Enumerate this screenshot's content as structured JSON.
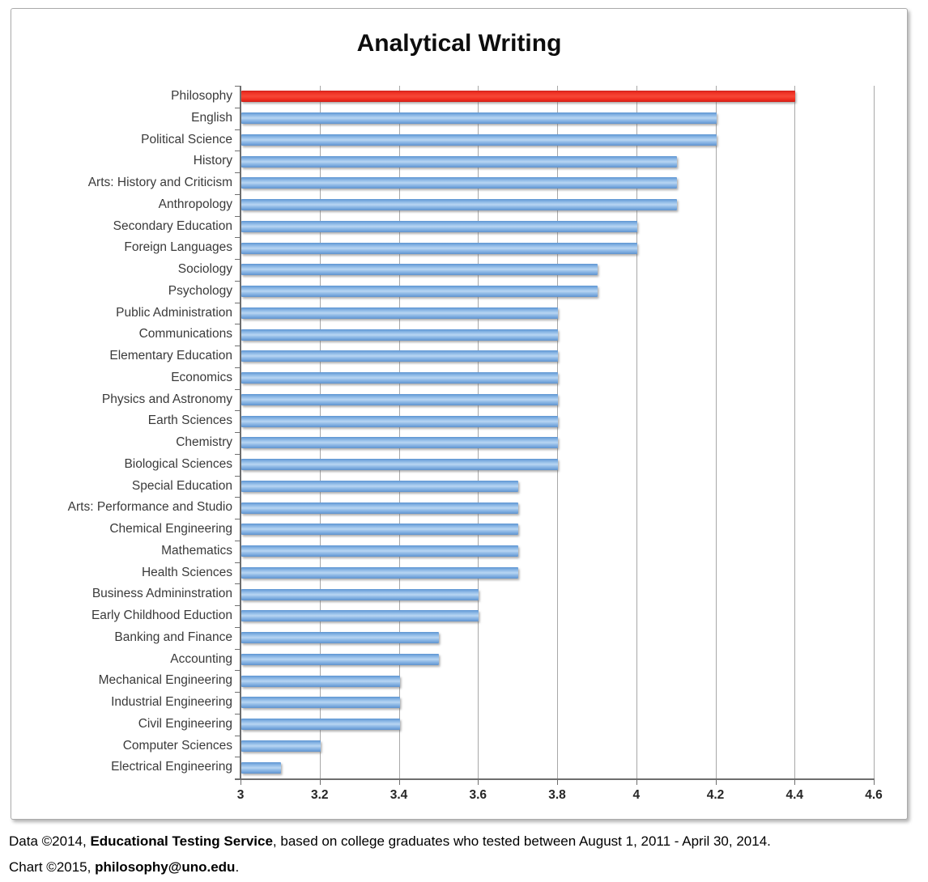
{
  "title": "Analytical Writing",
  "chart_data": {
    "type": "bar",
    "orientation": "horizontal",
    "title": "Analytical Writing",
    "categories": [
      "Philosophy",
      "English",
      "Political Science",
      "History",
      "Arts: History and Criticism",
      "Anthropology",
      "Secondary Education",
      "Foreign Languages",
      "Sociology",
      "Psychology",
      "Public Administration",
      "Communications",
      "Elementary Education",
      "Economics",
      "Physics and Astronomy",
      "Earth Sciences",
      "Chemistry",
      "Biological Sciences",
      "Special Education",
      "Arts: Performance and Studio",
      "Chemical Engineering",
      "Mathematics",
      "Health Sciences",
      "Business Admininstration",
      "Early Childhood Eduction",
      "Banking and Finance",
      "Accounting",
      "Mechanical Engineering",
      "Industrial Engineering",
      "Civil Engineering",
      "Computer Sciences",
      "Electrical Engineering"
    ],
    "values": [
      4.4,
      4.2,
      4.2,
      4.1,
      4.1,
      4.1,
      4.0,
      4.0,
      3.9,
      3.9,
      3.8,
      3.8,
      3.8,
      3.8,
      3.8,
      3.8,
      3.8,
      3.8,
      3.7,
      3.7,
      3.7,
      3.7,
      3.7,
      3.6,
      3.6,
      3.5,
      3.5,
      3.4,
      3.4,
      3.4,
      3.2,
      3.1
    ],
    "highlight_index": 0,
    "xlim": [
      3,
      4.6
    ],
    "x_ticks": [
      "3",
      "3.2",
      "3.4",
      "3.6",
      "3.8",
      "4",
      "4.2",
      "4.4",
      "4.6"
    ],
    "x_tick_values": [
      3,
      3.2,
      3.4,
      3.6,
      3.8,
      4,
      4.2,
      4.4,
      4.6
    ],
    "grid": "vertical",
    "legend": "none",
    "colors": {
      "bar": "#7babdf",
      "highlight_bar": "#f12b1d",
      "gridline": "#a8a8a8",
      "axis": "#6e6e6e",
      "label_text": "#3a3a3a"
    }
  },
  "footer": {
    "line1_prefix": "Data ©2014, ",
    "line1_bold": "Educational Testing Service",
    "line1_suffix": ", based on college graduates who tested between August 1, 2011 - April 30, 2014.",
    "line2_prefix": "Chart ©2015, ",
    "line2_bold": "philosophy@uno.edu",
    "line2_suffix": "."
  }
}
